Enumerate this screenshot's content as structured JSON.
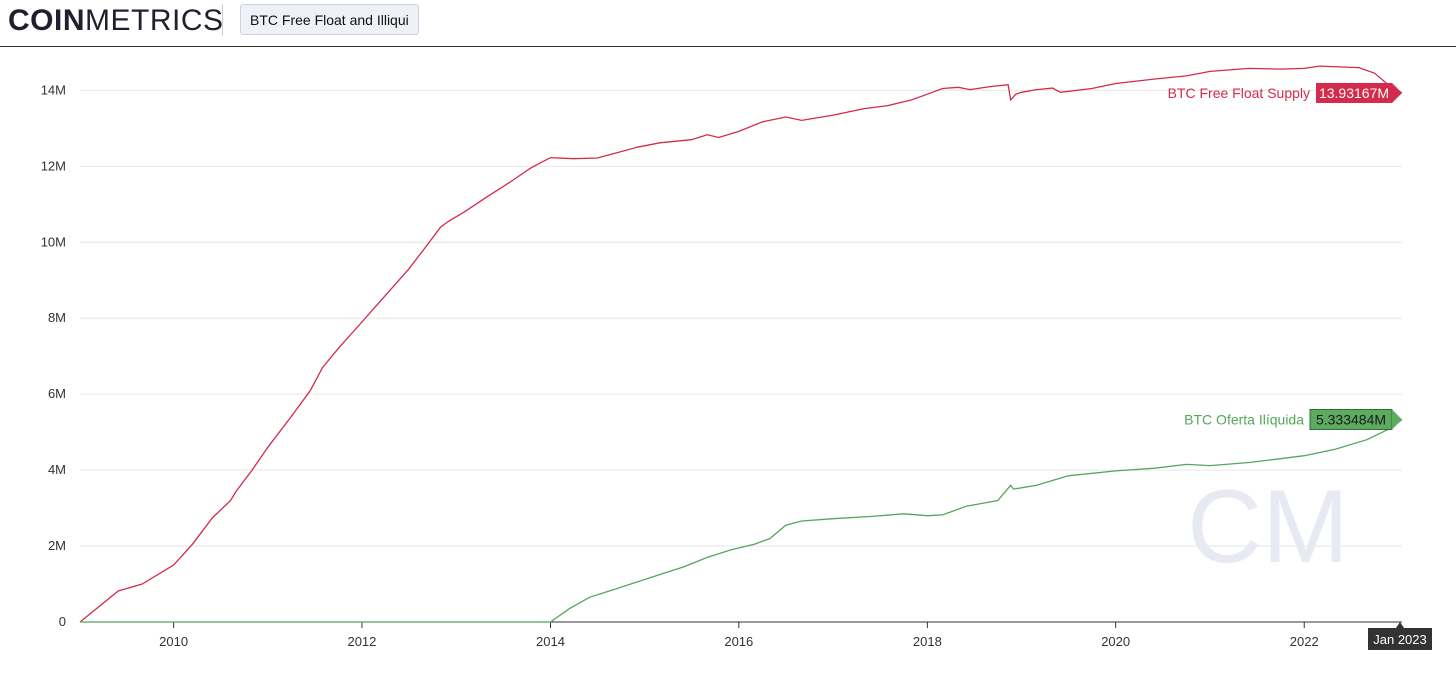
{
  "header": {
    "logo_bold": "COIN",
    "logo_light": "METRICS",
    "chart_tab_label": "BTC Free Float and Illiqui"
  },
  "watermark": "CM",
  "colors": {
    "free_float": "#d42a4b",
    "illiquid": "#55a55a",
    "illiquid_badge": "#5cab61",
    "grid": "#e6e6e6",
    "axis": "#333333",
    "watermark": "#e7eaf3"
  },
  "chart_data": {
    "type": "line",
    "title": "",
    "xlabel": "",
    "ylabel": "",
    "x_range": [
      "2009-01-03",
      "2023-01-15"
    ],
    "ylim": [
      0,
      14800000
    ],
    "y_ticks": [
      {
        "value": 0,
        "label": "0"
      },
      {
        "value": 2000000,
        "label": "2M"
      },
      {
        "value": 4000000,
        "label": "4M"
      },
      {
        "value": 6000000,
        "label": "6M"
      },
      {
        "value": 8000000,
        "label": "8M"
      },
      {
        "value": 10000000,
        "label": "10M"
      },
      {
        "value": 12000000,
        "label": "12M"
      },
      {
        "value": 14000000,
        "label": "14M"
      }
    ],
    "x_ticks": [
      {
        "date": "2010-01-01",
        "label": "2010"
      },
      {
        "date": "2012-01-01",
        "label": "2012"
      },
      {
        "date": "2014-01-01",
        "label": "2014"
      },
      {
        "date": "2016-01-01",
        "label": "2016"
      },
      {
        "date": "2018-01-01",
        "label": "2018"
      },
      {
        "date": "2020-01-01",
        "label": "2020"
      },
      {
        "date": "2022-01-01",
        "label": "2022"
      }
    ],
    "crosshair_label": "Jan 2023",
    "grid": true,
    "series": [
      {
        "name": "BTC Free Float Supply",
        "last_value_label": "13.93167M",
        "points": [
          [
            "2009-01-03",
            0
          ],
          [
            "2009-06-01",
            820000
          ],
          [
            "2009-09-01",
            1000000
          ],
          [
            "2010-01-01",
            1500000
          ],
          [
            "2010-03-15",
            2050000
          ],
          [
            "2010-06-01",
            2750000
          ],
          [
            "2010-08-10",
            3200000
          ],
          [
            "2010-09-01",
            3450000
          ],
          [
            "2010-11-01",
            4000000
          ],
          [
            "2011-01-01",
            4600000
          ],
          [
            "2011-04-01",
            5400000
          ],
          [
            "2011-06-15",
            6100000
          ],
          [
            "2011-08-01",
            6700000
          ],
          [
            "2011-10-01",
            7200000
          ],
          [
            "2012-01-01",
            7900000
          ],
          [
            "2012-04-01",
            8600000
          ],
          [
            "2012-07-01",
            9300000
          ],
          [
            "2012-09-01",
            9850000
          ],
          [
            "2012-11-01",
            10400000
          ],
          [
            "2012-12-01",
            10550000
          ],
          [
            "2013-02-01",
            10800000
          ],
          [
            "2013-05-01",
            11200000
          ],
          [
            "2013-08-01",
            11600000
          ],
          [
            "2013-10-15",
            11950000
          ],
          [
            "2014-01-01",
            12230000
          ],
          [
            "2014-04-01",
            12200000
          ],
          [
            "2014-07-01",
            12220000
          ],
          [
            "2014-09-01",
            12330000
          ],
          [
            "2014-12-01",
            12500000
          ],
          [
            "2015-03-01",
            12620000
          ],
          [
            "2015-07-01",
            12700000
          ],
          [
            "2015-09-01",
            12830000
          ],
          [
            "2015-10-15",
            12760000
          ],
          [
            "2016-01-01",
            12920000
          ],
          [
            "2016-04-01",
            13170000
          ],
          [
            "2016-07-01",
            13300000
          ],
          [
            "2016-09-01",
            13210000
          ],
          [
            "2017-01-01",
            13350000
          ],
          [
            "2017-05-01",
            13520000
          ],
          [
            "2017-08-01",
            13600000
          ],
          [
            "2017-11-01",
            13750000
          ],
          [
            "2018-01-01",
            13900000
          ],
          [
            "2018-03-01",
            14050000
          ],
          [
            "2018-05-01",
            14080000
          ],
          [
            "2018-06-15",
            14020000
          ],
          [
            "2018-09-01",
            14100000
          ],
          [
            "2018-11-10",
            14150000
          ],
          [
            "2018-11-20",
            13750000
          ],
          [
            "2018-12-10",
            13900000
          ],
          [
            "2019-01-01",
            13950000
          ],
          [
            "2019-03-01",
            14020000
          ],
          [
            "2019-05-01",
            14060000
          ],
          [
            "2019-06-01",
            13950000
          ],
          [
            "2019-10-01",
            14050000
          ],
          [
            "2020-01-01",
            14180000
          ],
          [
            "2020-06-01",
            14300000
          ],
          [
            "2020-10-01",
            14380000
          ],
          [
            "2021-01-01",
            14500000
          ],
          [
            "2021-06-01",
            14580000
          ],
          [
            "2021-10-01",
            14560000
          ],
          [
            "2022-01-01",
            14580000
          ],
          [
            "2022-03-01",
            14640000
          ],
          [
            "2022-08-01",
            14600000
          ],
          [
            "2022-10-01",
            14450000
          ],
          [
            "2022-12-01",
            14100000
          ],
          [
            "2023-01-15",
            13931670
          ]
        ]
      },
      {
        "name": "BTC Oferta Ilíquida",
        "last_value_label": "5.333484M",
        "points": [
          [
            "2009-01-03",
            0
          ],
          [
            "2014-01-01",
            0
          ],
          [
            "2014-03-15",
            350000
          ],
          [
            "2014-06-01",
            650000
          ],
          [
            "2014-09-01",
            850000
          ],
          [
            "2014-12-01",
            1050000
          ],
          [
            "2015-03-01",
            1250000
          ],
          [
            "2015-06-01",
            1450000
          ],
          [
            "2015-09-01",
            1700000
          ],
          [
            "2015-12-01",
            1900000
          ],
          [
            "2016-03-01",
            2050000
          ],
          [
            "2016-05-01",
            2200000
          ],
          [
            "2016-07-01",
            2550000
          ],
          [
            "2016-09-01",
            2660000
          ],
          [
            "2017-01-01",
            2720000
          ],
          [
            "2017-06-01",
            2780000
          ],
          [
            "2017-10-01",
            2850000
          ],
          [
            "2018-01-01",
            2800000
          ],
          [
            "2018-03-01",
            2820000
          ],
          [
            "2018-06-01",
            3050000
          ],
          [
            "2018-10-01",
            3200000
          ],
          [
            "2018-11-20",
            3600000
          ],
          [
            "2018-12-01",
            3500000
          ],
          [
            "2019-03-01",
            3600000
          ],
          [
            "2019-07-01",
            3850000
          ],
          [
            "2020-01-01",
            3980000
          ],
          [
            "2020-06-01",
            4050000
          ],
          [
            "2020-10-01",
            4150000
          ],
          [
            "2021-01-01",
            4120000
          ],
          [
            "2021-06-01",
            4200000
          ],
          [
            "2021-10-01",
            4300000
          ],
          [
            "2022-01-01",
            4380000
          ],
          [
            "2022-05-01",
            4550000
          ],
          [
            "2022-09-01",
            4800000
          ],
          [
            "2022-12-01",
            5100000
          ],
          [
            "2023-01-15",
            5333484
          ]
        ]
      }
    ]
  }
}
